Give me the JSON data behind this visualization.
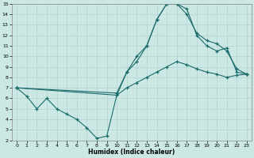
{
  "xlabel": "Humidex (Indice chaleur)",
  "background_color": "#cce8e4",
  "grid_color": "#b0d4d0",
  "line_color": "#1a6b6b",
  "line1_x": [
    0,
    1,
    2,
    3,
    4,
    5,
    6,
    7,
    8,
    9,
    10,
    11,
    12,
    13,
    14,
    15,
    16,
    17,
    18,
    19,
    20,
    21,
    22,
    23
  ],
  "line1_y": [
    7.0,
    6.2,
    5.0,
    6.0,
    5.0,
    4.5,
    4.0,
    3.2,
    2.2,
    2.4,
    6.3,
    7.0,
    7.5,
    8.0,
    8.5,
    9.0,
    9.5,
    9.2,
    8.8,
    8.5,
    8.3,
    8.0,
    8.2,
    8.3
  ],
  "line2_x": [
    0,
    10,
    11,
    12,
    13,
    14,
    15,
    16,
    17,
    18,
    19,
    20,
    21,
    22,
    23
  ],
  "line2_y": [
    7.0,
    6.3,
    8.5,
    9.5,
    11.0,
    13.5,
    15.0,
    15.0,
    14.5,
    12.0,
    11.0,
    10.5,
    10.8,
    8.5,
    8.3
  ],
  "line3_x": [
    0,
    10,
    11,
    12,
    13,
    14,
    15,
    16,
    17,
    18,
    19,
    20,
    21,
    22,
    23
  ],
  "line3_y": [
    7.0,
    6.5,
    8.5,
    10.0,
    11.0,
    13.5,
    15.0,
    15.0,
    14.0,
    12.2,
    11.5,
    11.2,
    10.5,
    8.8,
    8.3
  ],
  "xlim": [
    -0.5,
    23.5
  ],
  "ylim": [
    2,
    15
  ],
  "xticks": [
    0,
    1,
    2,
    3,
    4,
    5,
    6,
    7,
    8,
    9,
    10,
    11,
    12,
    13,
    14,
    15,
    16,
    17,
    18,
    19,
    20,
    21,
    22,
    23
  ],
  "yticks": [
    2,
    3,
    4,
    5,
    6,
    7,
    8,
    9,
    10,
    11,
    12,
    13,
    14,
    15
  ]
}
